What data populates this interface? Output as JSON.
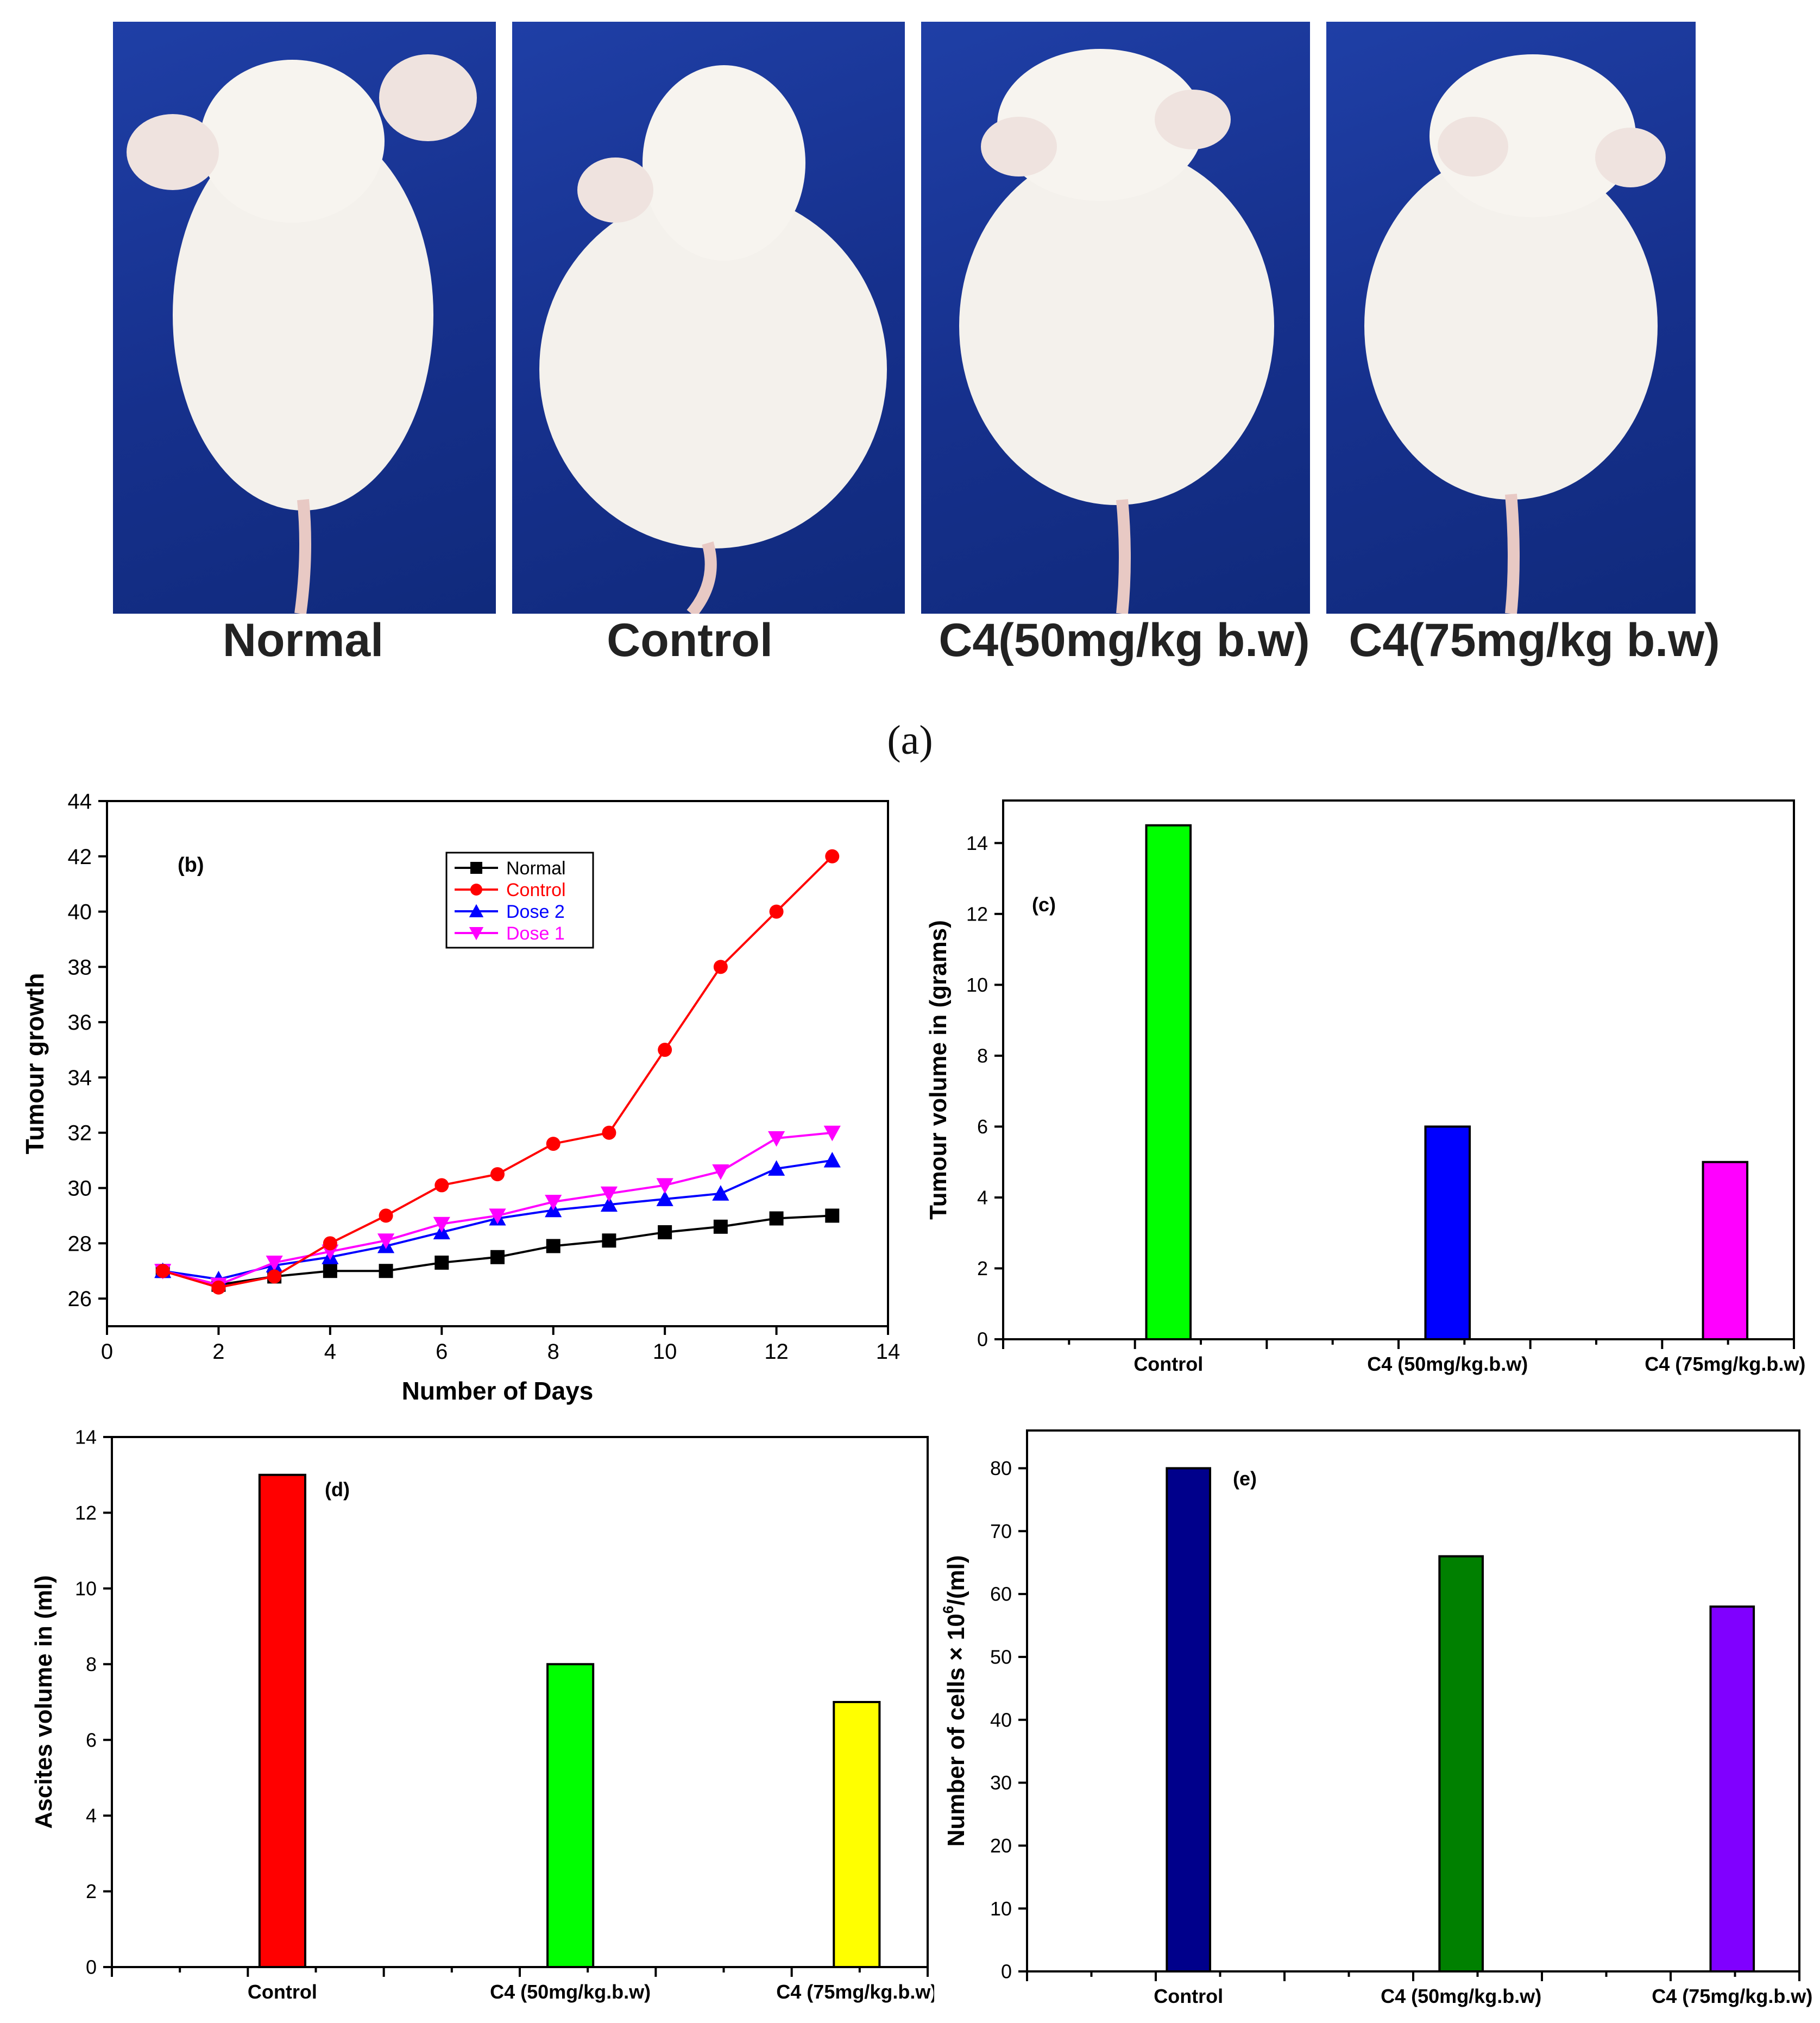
{
  "panel_a": {
    "label": "(a)",
    "photos": [
      {
        "name": "Normal"
      },
      {
        "name": "Control"
      },
      {
        "name": "C4(50mg/kg b.w)"
      },
      {
        "name": "C4(75mg/kg b.w)"
      }
    ],
    "background_color": "#1a3596",
    "mouse_color": "#f4f1ec"
  },
  "chart_data": [
    {
      "id": "b",
      "type": "line",
      "panel_label": "(b)",
      "title": "",
      "xlabel": "Number of Days",
      "ylabel": "Tumour growth",
      "xlim": [
        0,
        14
      ],
      "ylim": [
        25,
        44
      ],
      "xticks": [
        0,
        2,
        4,
        6,
        8,
        10,
        12,
        14
      ],
      "yticks": [
        26,
        28,
        30,
        32,
        34,
        36,
        38,
        40,
        42,
        44
      ],
      "x": [
        1,
        2,
        3,
        4,
        5,
        6,
        7,
        8,
        9,
        10,
        11,
        12,
        13
      ],
      "legend_position": "top-right",
      "series": [
        {
          "name": "Normal",
          "color": "#000000",
          "marker": "square",
          "values": [
            27.0,
            26.5,
            26.8,
            27.0,
            27.0,
            27.3,
            27.5,
            27.9,
            28.1,
            28.4,
            28.6,
            28.9,
            29.0
          ]
        },
        {
          "name": "Control",
          "color": "#ff0000",
          "marker": "circle",
          "values": [
            27.0,
            26.4,
            26.8,
            28.0,
            29.0,
            30.1,
            30.5,
            31.6,
            32.0,
            35.0,
            38.0,
            40.0,
            42.0
          ]
        },
        {
          "name": "Dose 2",
          "color": "#0000ff",
          "marker": "triangle-up",
          "values": [
            27.0,
            26.7,
            27.2,
            27.5,
            27.9,
            28.4,
            28.9,
            29.2,
            29.4,
            29.6,
            29.8,
            30.7,
            31.0
          ]
        },
        {
          "name": "Dose 1",
          "color": "#ff00ff",
          "marker": "triangle-down",
          "values": [
            27.0,
            26.5,
            27.3,
            27.7,
            28.1,
            28.7,
            29.0,
            29.5,
            29.8,
            30.1,
            30.6,
            31.8,
            32.0
          ]
        }
      ]
    },
    {
      "id": "c",
      "type": "bar",
      "panel_label": "(c)",
      "title": "",
      "xlabel": "",
      "ylabel": "Tumour  volume in (grams)",
      "ylim": [
        0,
        15.2
      ],
      "yticks": [
        0,
        2,
        4,
        6,
        8,
        10,
        12,
        14
      ],
      "categories": [
        "Control",
        "C4 (50mg/kg.b.w)",
        "C4 (75mg/kg.b.w)"
      ],
      "values": [
        14.5,
        6.0,
        5.0
      ],
      "colors": [
        "#00ff00",
        "#0000ff",
        "#ff00ff"
      ]
    },
    {
      "id": "d",
      "type": "bar",
      "panel_label": "(d)",
      "title": "",
      "xlabel": "",
      "ylabel": "Ascites volume in (ml)",
      "ylim": [
        0,
        14
      ],
      "yticks": [
        0,
        2,
        4,
        6,
        8,
        10,
        12,
        14
      ],
      "categories": [
        "Control",
        "C4 (50mg/kg.b.w)",
        "C4 (75mg/kg.b.w)"
      ],
      "values": [
        13,
        8,
        7
      ],
      "colors": [
        "#ff0000",
        "#00ff00",
        "#ffff00"
      ]
    },
    {
      "id": "e",
      "type": "bar",
      "panel_label": "(e)",
      "title": "",
      "xlabel": "",
      "ylabel": "Number of cells × 10",
      "ylabel_sup": "6",
      "ylabel_suffix": "/(ml)",
      "ylim": [
        0,
        86
      ],
      "yticks": [
        0,
        10,
        20,
        30,
        40,
        50,
        60,
        70,
        80
      ],
      "categories": [
        "Control",
        "C4 (50mg/kg.b.w)",
        "C4 (75mg/kg.b.w)"
      ],
      "values": [
        80,
        66,
        58
      ],
      "colors": [
        "#00008b",
        "#008000",
        "#8000ff"
      ]
    }
  ]
}
